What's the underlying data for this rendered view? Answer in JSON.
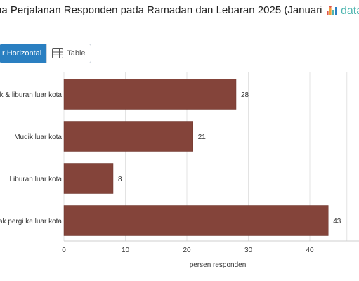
{
  "title": "na Perjalanan Responden pada Ramadan dan Lebaran 2025 (Januari",
  "brand": {
    "text": "data",
    "icon": "dataindonesia-logo-icon"
  },
  "toolbar": {
    "horizontal_label": "r Horizontal",
    "table_label": "Table",
    "table_icon": "table-grid-icon"
  },
  "colors": {
    "bar": "#84443a",
    "accent": "#2a7fc1",
    "brand": "#4fb6b0"
  },
  "chart_data": {
    "type": "bar",
    "orientation": "horizontal",
    "categories": [
      "ik & liburan luar kota",
      "Mudik luar kota",
      "Liburan luar kota",
      "lak pergi ke luar kota"
    ],
    "values": [
      28,
      21,
      8,
      43
    ],
    "data_labels": [
      "28",
      "21",
      "8",
      "43"
    ],
    "xlabel": "persen responden",
    "xlim": [
      0,
      45
    ],
    "xticks": [
      0,
      10,
      20,
      30,
      40
    ],
    "xtick_labels": [
      "0",
      "10",
      "20",
      "30",
      "40"
    ],
    "grid": true
  }
}
